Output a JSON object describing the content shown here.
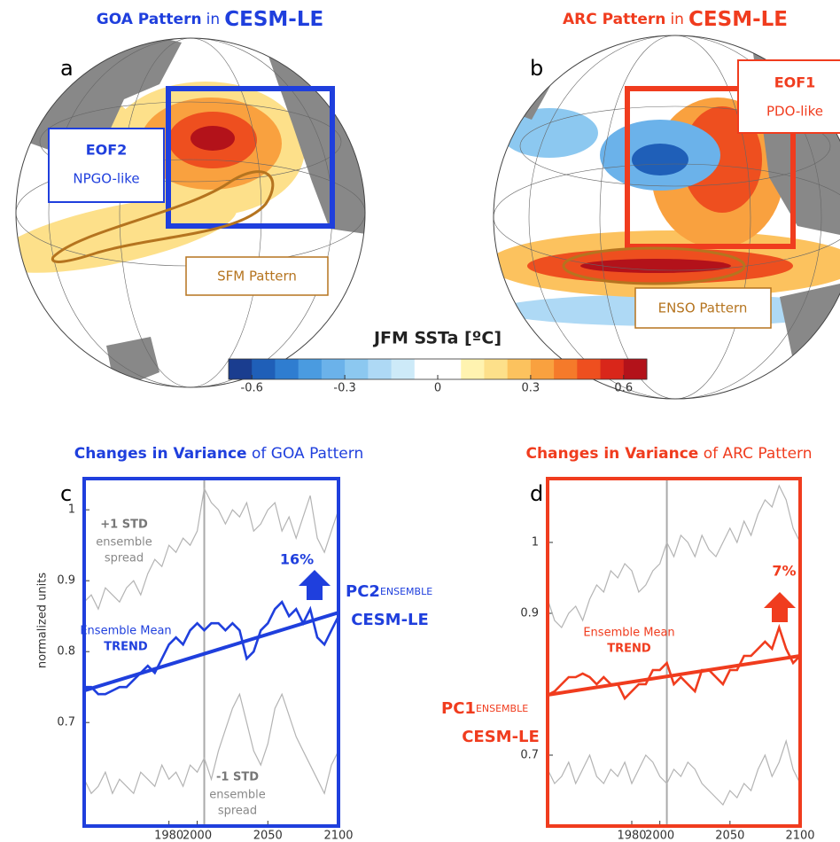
{
  "maps": [
    {
      "letter": "a",
      "title": "GOA Pattern",
      "title_in": "in",
      "title_model": "CESM-LE",
      "eof": "EOF2",
      "eof_desc": "NPGO-like",
      "pattern_label": "SFM Pattern"
    },
    {
      "letter": "b",
      "title": "ARC Pattern",
      "title_in": "in",
      "title_model": "CESM-LE",
      "eof": "EOF1",
      "eof_desc": "PDO-like",
      "pattern_label": "ENSO Pattern"
    }
  ],
  "colorbar": {
    "title": "JFM SSTa [ºC]",
    "xlim": [
      -0.675,
      0.675
    ],
    "xticks": [
      -0.6,
      -0.3,
      0,
      0.3,
      0.6
    ],
    "colors": [
      "#1a3d8f",
      "#1f5fb8",
      "#2f7dd0",
      "#4a9be0",
      "#6bb2ea",
      "#8cc8f0",
      "#aed9f5",
      "#cdeaf8",
      "#ffffff",
      "#ffffff",
      "#fff3b0",
      "#fde08a",
      "#fcc25e",
      "#f9a13f",
      "#f57a2a",
      "#ee4f1f",
      "#d9261a",
      "#b3121a"
    ]
  },
  "chart_data": [
    {
      "type": "line",
      "letter": "c",
      "title": "Changes in Variance",
      "title_rest": "of GOA Pattern",
      "ylabel": "normalized units",
      "x": [
        1920,
        1925,
        1930,
        1935,
        1940,
        1945,
        1950,
        1955,
        1960,
        1965,
        1970,
        1975,
        1980,
        1985,
        1990,
        1995,
        2000,
        2005,
        2010,
        2015,
        2020,
        2025,
        2030,
        2035,
        2040,
        2045,
        2050,
        2055,
        2060,
        2065,
        2070,
        2075,
        2080,
        2085,
        2090,
        2095,
        2100
      ],
      "xlim": [
        1920,
        2100
      ],
      "xticks": [
        1980,
        2000,
        2050,
        2100
      ],
      "ylim": [
        0.554,
        1.044
      ],
      "yticks": [
        0.7,
        0.8,
        0.9,
        1
      ],
      "vline": 2005,
      "frame_color": "#1f3fdd",
      "series": [
        {
          "color": "#b4b4b4",
          "width": 1.2,
          "values": [
            0.87,
            0.88,
            0.86,
            0.89,
            0.88,
            0.87,
            0.89,
            0.9,
            0.88,
            0.91,
            0.93,
            0.92,
            0.95,
            0.94,
            0.96,
            0.95,
            0.97,
            1.03,
            1.01,
            1.0,
            0.98,
            1.0,
            0.99,
            1.01,
            0.97,
            0.98,
            1.0,
            1.01,
            0.97,
            0.99,
            0.96,
            0.99,
            1.02,
            0.96,
            0.94,
            0.97,
            1.0
          ]
        },
        {
          "color": "#b4b4b4",
          "width": 1.2,
          "values": [
            0.62,
            0.6,
            0.61,
            0.63,
            0.6,
            0.62,
            0.61,
            0.6,
            0.63,
            0.62,
            0.61,
            0.64,
            0.62,
            0.63,
            0.61,
            0.64,
            0.63,
            0.65,
            0.62,
            0.66,
            0.69,
            0.72,
            0.74,
            0.7,
            0.66,
            0.64,
            0.67,
            0.72,
            0.74,
            0.71,
            0.68,
            0.66,
            0.64,
            0.62,
            0.6,
            0.64,
            0.66
          ]
        },
        {
          "color": "#1f3fdd",
          "width": 2.6,
          "values": [
            0.75,
            0.75,
            0.74,
            0.74,
            0.745,
            0.75,
            0.75,
            0.76,
            0.77,
            0.78,
            0.77,
            0.79,
            0.81,
            0.82,
            0.81,
            0.83,
            0.84,
            0.83,
            0.84,
            0.84,
            0.83,
            0.84,
            0.83,
            0.79,
            0.8,
            0.83,
            0.84,
            0.86,
            0.87,
            0.85,
            0.86,
            0.84,
            0.86,
            0.82,
            0.81,
            0.83,
            0.85
          ]
        }
      ],
      "trend": {
        "color": "#1f3fdd",
        "x": [
          1920,
          2100
        ],
        "values": [
          0.745,
          0.855
        ]
      },
      "annotations": [
        "+1 STD",
        "ensemble",
        "spread",
        "16%",
        "Ensemble Mean",
        "TREND",
        "-1 STD",
        "ensemble",
        "spread"
      ],
      "pc_name": "PC2",
      "pc_sub": "ENSEMBLE",
      "pc_model": "CESM-LE"
    },
    {
      "type": "line",
      "letter": "d",
      "title": "Changes in Variance",
      "title_rest": "of ARC Pattern",
      "x": [
        1920,
        1925,
        1930,
        1935,
        1940,
        1945,
        1950,
        1955,
        1960,
        1965,
        1970,
        1975,
        1980,
        1985,
        1990,
        1995,
        2000,
        2005,
        2010,
        2015,
        2020,
        2025,
        2030,
        2035,
        2040,
        2045,
        2050,
        2055,
        2060,
        2065,
        2070,
        2075,
        2080,
        2085,
        2090,
        2095,
        2100
      ],
      "xlim": [
        1920,
        2100
      ],
      "xticks": [
        1980,
        2000,
        2050,
        2100
      ],
      "ylim": [
        0.6,
        1.09
      ],
      "yticks": [
        0.7,
        0.9,
        1
      ],
      "vline": 2005,
      "frame_color": "#f03c1e",
      "series": [
        {
          "color": "#b4b4b4",
          "width": 1.2,
          "values": [
            0.92,
            0.89,
            0.88,
            0.9,
            0.91,
            0.89,
            0.92,
            0.94,
            0.93,
            0.96,
            0.95,
            0.97,
            0.96,
            0.93,
            0.94,
            0.96,
            0.97,
            1.0,
            0.98,
            1.01,
            1.0,
            0.98,
            1.01,
            0.99,
            0.98,
            1.0,
            1.02,
            1.0,
            1.03,
            1.01,
            1.04,
            1.06,
            1.05,
            1.08,
            1.06,
            1.02,
            1.0
          ]
        },
        {
          "color": "#b4b4b4",
          "width": 1.2,
          "values": [
            0.68,
            0.66,
            0.67,
            0.69,
            0.66,
            0.68,
            0.7,
            0.67,
            0.66,
            0.68,
            0.67,
            0.69,
            0.66,
            0.68,
            0.7,
            0.69,
            0.67,
            0.66,
            0.68,
            0.67,
            0.69,
            0.68,
            0.66,
            0.65,
            0.64,
            0.63,
            0.65,
            0.64,
            0.66,
            0.65,
            0.68,
            0.7,
            0.67,
            0.69,
            0.72,
            0.68,
            0.66
          ]
        },
        {
          "color": "#f03c1e",
          "width": 2.6,
          "values": [
            0.785,
            0.79,
            0.8,
            0.81,
            0.81,
            0.815,
            0.81,
            0.8,
            0.81,
            0.8,
            0.8,
            0.78,
            0.79,
            0.8,
            0.8,
            0.82,
            0.82,
            0.83,
            0.8,
            0.81,
            0.8,
            0.79,
            0.82,
            0.82,
            0.81,
            0.8,
            0.82,
            0.82,
            0.84,
            0.84,
            0.85,
            0.86,
            0.85,
            0.88,
            0.85,
            0.83,
            0.84
          ]
        }
      ],
      "trend": {
        "color": "#f03c1e",
        "x": [
          1920,
          2100
        ],
        "values": [
          0.785,
          0.84
        ]
      },
      "annotations": [
        "Ensemble Mean",
        "TREND",
        "7%"
      ],
      "pc_name": "PC1",
      "pc_sub": "ENSEMBLE",
      "pc_model": "CESM-LE"
    }
  ]
}
